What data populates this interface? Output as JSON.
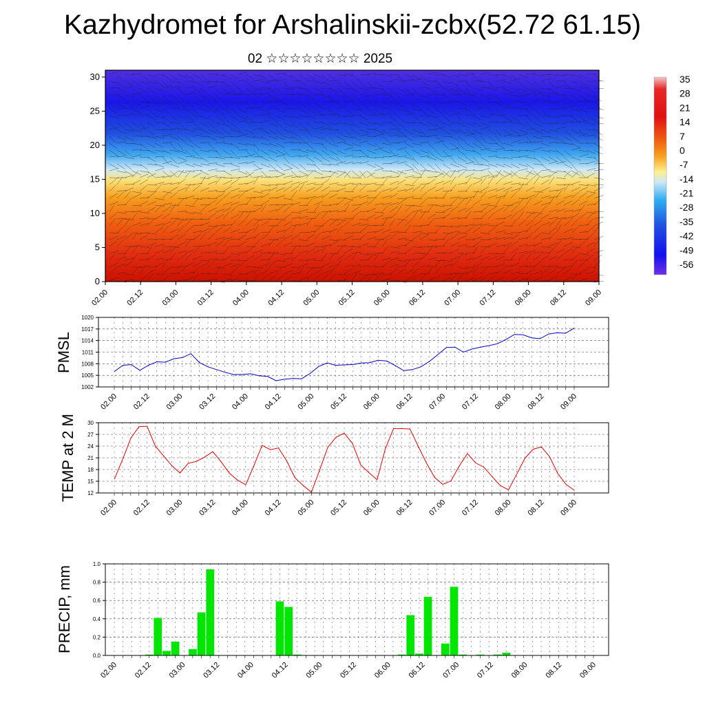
{
  "header": {
    "title": "Kazhydromet for Arshalinskii-zcbx(52.72 61.15)",
    "subtitle": "02 ☆☆☆☆☆☆☆☆ 2025"
  },
  "colors": {
    "pmsl_line": "#0000cc",
    "temp_line": "#dd0000",
    "precip_bar": "#00e600",
    "grid": "#444444"
  },
  "chart_data": [
    {
      "id": "cross-section",
      "type": "heatmap",
      "title": "",
      "x_ticks": [
        "02.00",
        "02.12",
        "03.00",
        "03.12",
        "04.00",
        "04.12",
        "05.00",
        "05.12",
        "06.00",
        "06.12",
        "07.00",
        "07.12",
        "08.00",
        "08.12",
        "09.00"
      ],
      "ylim": [
        0,
        31
      ],
      "y_ticks": [
        0,
        5,
        10,
        15,
        20,
        25,
        30
      ],
      "colorbar": {
        "labels": [
          "35",
          "28",
          "21",
          "14",
          "7",
          "0",
          "-7",
          "-14",
          "-21",
          "-28",
          "-35",
          "-42",
          "-49",
          "-56"
        ]
      }
    },
    {
      "id": "pmsl",
      "type": "line",
      "ylabel": "PMSL",
      "ylim": [
        1002,
        1020
      ],
      "y_ticks": [
        1002,
        1005,
        1008,
        1011,
        1014,
        1017,
        1020
      ],
      "x_ticks": [
        "02.00",
        "02.12",
        "03.00",
        "03.12",
        "04.00",
        "04.12",
        "05.00",
        "05.12",
        "06.00",
        "06.12",
        "07.00",
        "07.12",
        "08.00",
        "08.12",
        "09.00"
      ],
      "values": [
        1006.0,
        1007.6,
        1007.8,
        1006.3,
        1007.6,
        1008.5,
        1008.4,
        1009.3,
        1009.6,
        1010.6,
        1008.3,
        1007.2,
        1006.5,
        1005.8,
        1005.2,
        1005.2,
        1005.4,
        1004.9,
        1004.7,
        1003.6,
        1004.0,
        1004.2,
        1004.1,
        1005.5,
        1007.3,
        1008.2,
        1007.6,
        1007.7,
        1007.8,
        1008.2,
        1008.3,
        1008.9,
        1008.7,
        1007.5,
        1006.2,
        1006.5,
        1007.2,
        1008.6,
        1010.4,
        1012.2,
        1012.3,
        1011.0,
        1011.8,
        1012.3,
        1012.7,
        1013.2,
        1014.3,
        1015.6,
        1015.5,
        1014.7,
        1014.5,
        1015.7,
        1016.0,
        1015.9,
        1017.2
      ]
    },
    {
      "id": "temp",
      "type": "line",
      "ylabel": "TEMP at 2 M",
      "ylim": [
        12,
        30
      ],
      "y_ticks": [
        12,
        15,
        18,
        21,
        24,
        27,
        30
      ],
      "x_ticks": [
        "02.00",
        "02.12",
        "03.00",
        "03.12",
        "04.00",
        "04.12",
        "05.00",
        "05.12",
        "06.00",
        "06.12",
        "07.00",
        "07.12",
        "08.00",
        "08.12",
        "09.00"
      ],
      "values": [
        15.5,
        20.5,
        26.0,
        29.0,
        29.1,
        24.0,
        21.5,
        19.0,
        17.1,
        19.6,
        20.1,
        21.2,
        22.6,
        20.0,
        17.1,
        15.3,
        14.1,
        19.0,
        24.2,
        23.1,
        23.5,
        20.2,
        15.9,
        13.9,
        12.2,
        17.8,
        23.7,
        26.3,
        27.3,
        24.7,
        19.2,
        17.2,
        15.4,
        23.3,
        28.5,
        28.5,
        28.4,
        24.0,
        19.7,
        16.0,
        14.2,
        15.1,
        18.9,
        22.1,
        19.7,
        18.6,
        16.2,
        13.9,
        12.8,
        16.8,
        20.9,
        23.2,
        23.8,
        21.3,
        17.0,
        14.2,
        12.7
      ]
    },
    {
      "id": "precip",
      "type": "bar",
      "ylabel": "PRECIP, mm",
      "ylim": [
        0,
        1
      ],
      "y_ticks": [
        "0.0",
        "0.2",
        "0.4",
        "0.6",
        "0.8",
        "1.0"
      ],
      "x_ticks": [
        "02.00",
        "02.12",
        "03.00",
        "03.12",
        "04.00",
        "04.12",
        "05.00",
        "05.12",
        "06.00",
        "06.12",
        "07.00",
        "07.12",
        "08.00",
        "08.12",
        "09.00"
      ],
      "values": [
        0,
        0,
        0,
        0,
        0.01,
        0.41,
        0.05,
        0.15,
        0,
        0.07,
        0.47,
        0.94,
        0,
        0,
        0,
        0,
        0,
        0,
        0,
        0.59,
        0.53,
        0.01,
        0,
        0,
        0,
        0,
        0,
        0,
        0,
        0,
        0,
        0,
        0,
        0.01,
        0.44,
        0.02,
        0.64,
        0,
        0.13,
        0.75,
        0.01,
        0,
        0.01,
        0,
        0.01,
        0.03,
        0,
        0,
        0,
        0,
        0,
        0,
        0,
        0,
        0,
        0
      ]
    }
  ]
}
